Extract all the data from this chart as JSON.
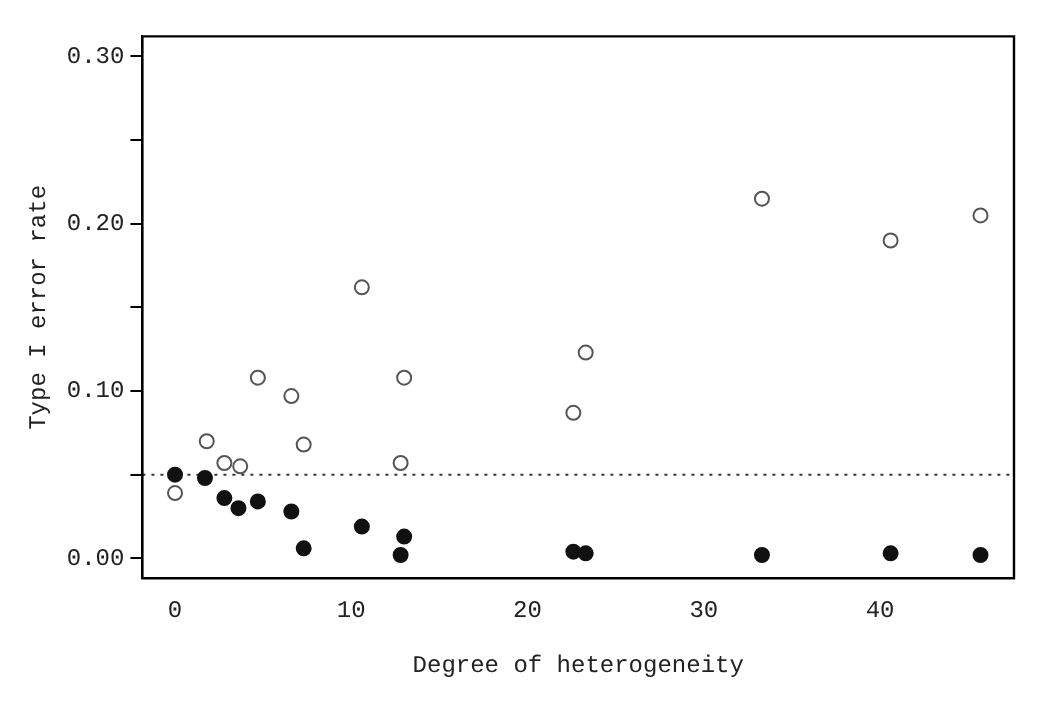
{
  "chart_data": {
    "type": "scatter",
    "xlabel": "Degree of heterogeneity",
    "ylabel": "Type I error rate",
    "xlim": [
      -1.85,
      47.6
    ],
    "ylim": [
      -0.012,
      0.312
    ],
    "xticks": [
      0,
      10,
      20,
      30,
      40
    ],
    "yticks": [
      {
        "value": 0,
        "label": "0.00"
      },
      {
        "value": 0.05,
        "label": null
      },
      {
        "value": 0.1,
        "label": "0.10"
      },
      {
        "value": 0.15,
        "label": null
      },
      {
        "value": 0.2,
        "label": "0.20"
      },
      {
        "value": 0.25,
        "label": null
      },
      {
        "value": 0.3,
        "label": "0.30"
      }
    ],
    "grid": false,
    "legend": false,
    "marker": "circle",
    "ref_lines": [
      {
        "axis": "y",
        "value": 0.05,
        "line_style": "dotted",
        "color": "#333333"
      }
    ],
    "series": [
      {
        "color": "#555555",
        "x": [
          0,
          1.8,
          2.8,
          3.7,
          4.7,
          6.6,
          7.3,
          10.6,
          12.8,
          13.0,
          22.6,
          23.3,
          33.3,
          40.6,
          45.7
        ],
        "values": [
          0.039,
          0.07,
          0.057,
          0.055,
          0.108,
          0.097,
          0.068,
          0.162,
          0.057,
          0.108,
          0.087,
          0.123,
          0.215,
          0.19,
          0.205
        ]
      },
      {
        "color": "#111111",
        "x": [
          0,
          1.7,
          2.8,
          3.6,
          4.7,
          6.6,
          7.3,
          10.6,
          12.8,
          13.0,
          22.6,
          23.3,
          33.3,
          40.6,
          45.7
        ],
        "values": [
          0.05,
          0.048,
          0.036,
          0.03,
          0.034,
          0.028,
          0.006,
          0.019,
          0.002,
          0.013,
          0.004,
          0.003,
          0.002,
          0.003,
          0.002
        ]
      }
    ]
  }
}
